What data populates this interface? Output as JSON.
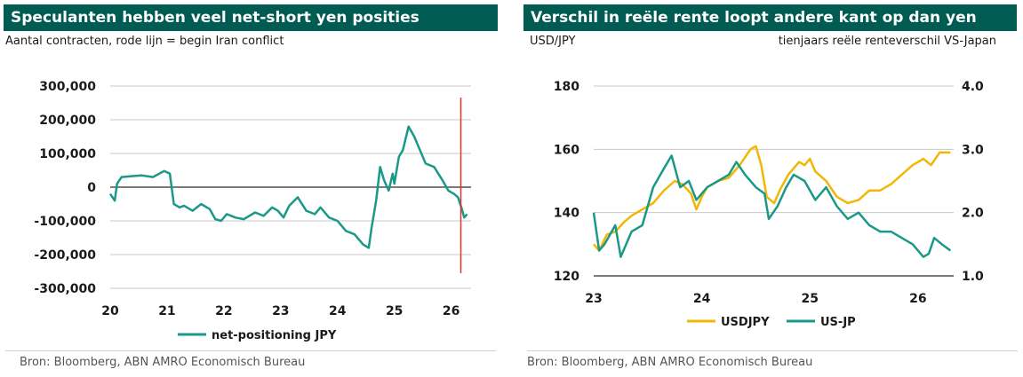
{
  "left": {
    "title": "Speculanten hebben veel net-short yen posities",
    "subtitle": "Aantal contracten, rode lijn = begin Iran conflict",
    "source": "Bron: Bloomberg, ABN AMRO Economisch Bureau",
    "legend": [
      "net-positioning JPY"
    ],
    "colors": {
      "series": "#1a9988",
      "event_line": "#e0332b",
      "banner": "#005b52"
    }
  },
  "right": {
    "title": "Verschil in reële rente loopt andere kant op dan yen",
    "subtitle_left": "USD/JPY",
    "subtitle_right": "tienjaars reële renteverschil VS-Japan",
    "source": "Bron: Bloomberg, ABN AMRO Economisch Bureau",
    "legend": [
      "USDJPY",
      "US-JP"
    ],
    "colors": {
      "usdjpy": "#f2b705",
      "usjp": "#1a9988",
      "banner": "#005b52"
    }
  },
  "chart_data": [
    {
      "type": "line",
      "title": "Speculanten hebben veel net-short yen posities",
      "ylabel": "Aantal contracten",
      "ylim": [
        -300000,
        300000
      ],
      "yticks": [
        300000,
        200000,
        100000,
        0,
        -100000,
        -200000,
        -300000
      ],
      "ytick_labels": [
        "300,000",
        "200,000",
        "100,000",
        "0",
        "-100,000",
        "-200,000",
        "-300,000"
      ],
      "xlim": [
        2020.0,
        2026.35
      ],
      "xticks": [
        2020,
        2021,
        2022,
        2023,
        2024,
        2025,
        2026
      ],
      "xtick_labels": [
        "20",
        "21",
        "22",
        "23",
        "24",
        "25",
        "26"
      ],
      "vline": {
        "x": 2026.17,
        "label": "begin Iran conflict"
      },
      "series": [
        {
          "name": "net-positioning JPY",
          "x": [
            2020.0,
            2020.08,
            2020.12,
            2020.2,
            2020.35,
            2020.55,
            2020.75,
            2020.95,
            2021.05,
            2021.12,
            2021.22,
            2021.3,
            2021.45,
            2021.6,
            2021.75,
            2021.85,
            2021.95,
            2022.05,
            2022.2,
            2022.35,
            2022.55,
            2022.7,
            2022.85,
            2022.95,
            2023.05,
            2023.15,
            2023.3,
            2023.45,
            2023.6,
            2023.7,
            2023.85,
            2024.0,
            2024.15,
            2024.3,
            2024.45,
            2024.55,
            2024.6,
            2024.68,
            2024.75,
            2024.82,
            2024.9,
            2024.97,
            2025.0,
            2025.08,
            2025.15,
            2025.25,
            2025.35,
            2025.45,
            2025.55,
            2025.7,
            2025.85,
            2025.95,
            2026.05,
            2026.12,
            2026.18,
            2026.23,
            2026.28
          ],
          "values": [
            -20000,
            -40000,
            10000,
            30000,
            32000,
            35000,
            30000,
            48000,
            40000,
            -50000,
            -60000,
            -55000,
            -70000,
            -50000,
            -65000,
            -95000,
            -100000,
            -80000,
            -90000,
            -95000,
            -75000,
            -85000,
            -60000,
            -70000,
            -90000,
            -55000,
            -30000,
            -70000,
            -80000,
            -60000,
            -90000,
            -100000,
            -130000,
            -140000,
            -170000,
            -180000,
            -120000,
            -40000,
            60000,
            20000,
            -10000,
            40000,
            10000,
            90000,
            110000,
            180000,
            150000,
            110000,
            70000,
            60000,
            20000,
            -10000,
            -20000,
            -30000,
            -60000,
            -90000,
            -80000
          ]
        }
      ]
    },
    {
      "type": "line",
      "title": "Verschil in reële rente loopt andere kant op dan yen",
      "ylabel": "USD/JPY",
      "y2label": "tienjaars reële renteverschil VS-Japan",
      "ylim": [
        120,
        180
      ],
      "yticks": [
        120,
        140,
        160,
        180
      ],
      "y2lim": [
        1.0,
        4.0
      ],
      "y2ticks": [
        1.0,
        2.0,
        3.0,
        4.0
      ],
      "y2tick_labels": [
        "1.0",
        "2.0",
        "3.0",
        "4.0"
      ],
      "xlim": [
        2023.0,
        2026.33
      ],
      "xticks": [
        2023,
        2024,
        2025,
        2026
      ],
      "xtick_labels": [
        "23",
        "24",
        "25",
        "26"
      ],
      "series": [
        {
          "name": "USDJPY",
          "axis": "left",
          "x": [
            2023.0,
            2023.05,
            2023.12,
            2023.2,
            2023.28,
            2023.35,
            2023.45,
            2023.55,
            2023.65,
            2023.75,
            2023.82,
            2023.9,
            2023.95,
            2024.0,
            2024.05,
            2024.15,
            2024.25,
            2024.35,
            2024.45,
            2024.5,
            2024.55,
            2024.6,
            2024.67,
            2024.72,
            2024.8,
            2024.9,
            2024.95,
            2025.0,
            2025.05,
            2025.15,
            2025.25,
            2025.35,
            2025.45,
            2025.55,
            2025.65,
            2025.75,
            2025.85,
            2025.95,
            2026.05,
            2026.12,
            2026.2,
            2026.3
          ],
          "values": [
            130,
            128,
            133,
            134,
            137,
            139,
            141,
            143,
            147,
            150,
            149,
            146,
            141,
            145,
            148,
            150,
            151,
            155,
            160,
            161,
            155,
            145,
            143,
            147,
            152,
            156,
            155,
            157,
            153,
            150,
            145,
            143,
            144,
            147,
            147,
            149,
            152,
            155,
            157,
            155,
            159,
            159
          ]
        },
        {
          "name": "US-JP",
          "axis": "right",
          "x": [
            2023.0,
            2023.05,
            2023.1,
            2023.2,
            2023.25,
            2023.35,
            2023.45,
            2023.55,
            2023.65,
            2023.72,
            2023.8,
            2023.88,
            2023.95,
            2024.05,
            2024.15,
            2024.25,
            2024.32,
            2024.4,
            2024.5,
            2024.58,
            2024.62,
            2024.7,
            2024.78,
            2024.85,
            2024.95,
            2025.05,
            2025.15,
            2025.25,
            2025.35,
            2025.45,
            2025.55,
            2025.65,
            2025.75,
            2025.85,
            2025.95,
            2026.05,
            2026.1,
            2026.15,
            2026.22,
            2026.3
          ],
          "values": [
            2.0,
            1.4,
            1.5,
            1.8,
            1.3,
            1.7,
            1.8,
            2.4,
            2.7,
            2.9,
            2.4,
            2.5,
            2.2,
            2.4,
            2.5,
            2.6,
            2.8,
            2.6,
            2.4,
            2.3,
            1.9,
            2.1,
            2.4,
            2.6,
            2.5,
            2.2,
            2.4,
            2.1,
            1.9,
            2.0,
            1.8,
            1.7,
            1.7,
            1.6,
            1.5,
            1.3,
            1.35,
            1.6,
            1.5,
            1.4
          ]
        }
      ]
    }
  ]
}
